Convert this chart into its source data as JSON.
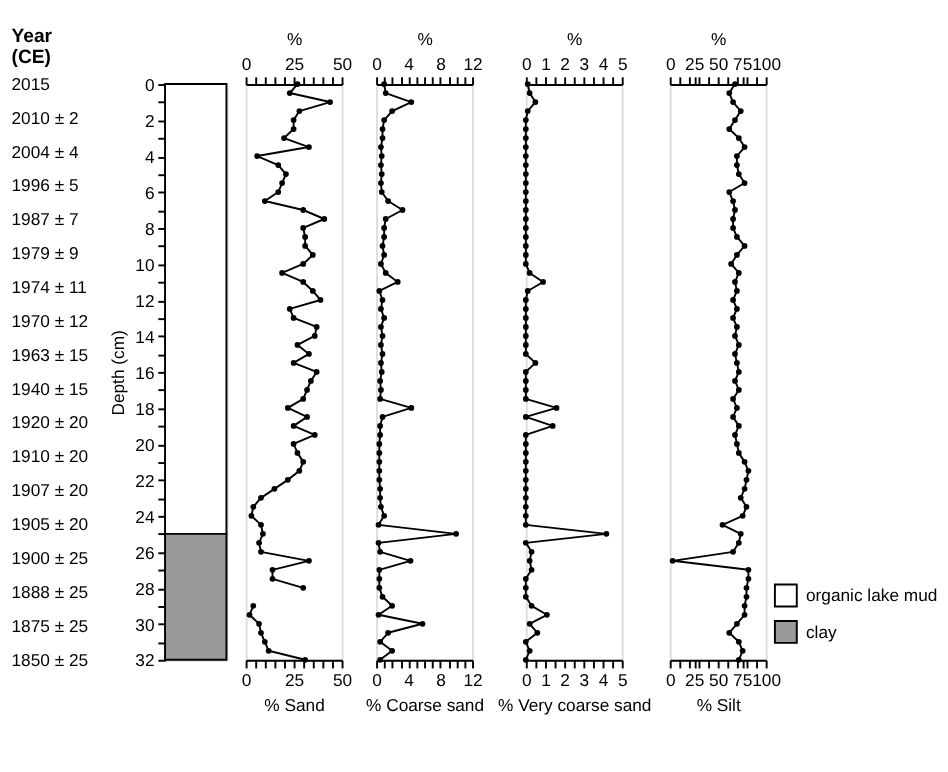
{
  "chart_data": [
    {
      "type": "bar",
      "stacked": true,
      "ylabel": "Depth (cm)",
      "categories": [
        null
      ],
      "series": [
        {
          "name": "organic lake mud",
          "color": "#ffffff",
          "values": [
            25
          ]
        },
        {
          "name": "clay",
          "color": "#999999",
          "values": [
            7
          ]
        }
      ],
      "ylim": [
        32,
        0
      ],
      "yticks": [
        0,
        {
          "value": 1,
          "label": null
        },
        2,
        {
          "value": 3,
          "label": null
        },
        4,
        {
          "value": 5,
          "label": null
        },
        6,
        {
          "value": 7,
          "label": null
        },
        8,
        {
          "value": 9,
          "label": null
        },
        10,
        {
          "value": 11,
          "label": null
        },
        12,
        {
          "value": 13,
          "label": null
        },
        14,
        {
          "value": 15,
          "label": null
        },
        16,
        {
          "value": 17,
          "label": null
        },
        18,
        {
          "value": 19,
          "label": null
        },
        20,
        {
          "value": 21,
          "label": null
        },
        22,
        {
          "value": 23,
          "label": null
        },
        24,
        {
          "value": 25,
          "label": null
        },
        26,
        {
          "value": 27,
          "label": null
        },
        28,
        {
          "value": 29,
          "label": null
        },
        30,
        {
          "value": 31,
          "label": null
        },
        32
      ],
      "tick_labels": "y",
      "legend": "bottom right",
      "annotations": [
        "Year (CE)",
        "2015",
        "2010 ± 2",
        "2004 ± 4",
        "1996 ± 5",
        "1987 ± 7",
        "1979 ± 9",
        "1974 ± 11",
        "1970 ± 12",
        "1963 ± 15",
        "1940 ± 15",
        "1920 ± 20",
        "1910 ± 20",
        "1907 ± 20",
        "1905 ± 20",
        "1900 ± 25",
        "1888 ± 25",
        "1875 ± 25",
        "1850 ± 25"
      ]
    },
    {
      "type": "line",
      "orientation": "horizontal",
      "marker": "circle",
      "xlabel": "% Sand",
      "x2label": "%",
      "tick_labels": "x",
      "ylim": [
        32,
        0
      ],
      "x": [
        0,
        0.5,
        1,
        1.5,
        2,
        2.5,
        3,
        3.5,
        4,
        4.5,
        5,
        5.5,
        6,
        6.5,
        7,
        7.5,
        8,
        8.5,
        9,
        9.5,
        10,
        10.5,
        11,
        11.5,
        12,
        12.5,
        13,
        13.5,
        14,
        14.5,
        15,
        15.5,
        16,
        16.5,
        17,
        17.5,
        18,
        18.5,
        19,
        19.5,
        20,
        20.5,
        21,
        21.5,
        22,
        22.5,
        23,
        23.5,
        24,
        24.5,
        25,
        25.5,
        26,
        26.5,
        27,
        27.5,
        28,
        28.5,
        29,
        29.5,
        30,
        30.5,
        31,
        31.5,
        32
      ],
      "series": [
        {
          "color": "#000000",
          "values": [
            27,
            23,
            44,
            28,
            25,
            25,
            20,
            33,
            6,
            17,
            21,
            19,
            17,
            10,
            30,
            41,
            30,
            31,
            31,
            35,
            30,
            19,
            30,
            35,
            39,
            23,
            25,
            37,
            36,
            27,
            33,
            25,
            37,
            34,
            32,
            30,
            22,
            32,
            25,
            36,
            25,
            27,
            30,
            28,
            22,
            15,
            8,
            4,
            3,
            8,
            9,
            7,
            8,
            33,
            14,
            14,
            30,
            null,
            4,
            2,
            7,
            8,
            10,
            12,
            31
          ]
        }
      ],
      "xlim": [
        0,
        50
      ],
      "xticks": [
        0,
        {
          "value": 5,
          "label": null
        },
        {
          "value": 10,
          "label": null
        },
        {
          "value": 15,
          "label": null
        },
        {
          "value": 20,
          "label": null
        },
        25,
        {
          "value": 30,
          "label": null
        },
        {
          "value": 35,
          "label": null
        },
        {
          "value": 40,
          "label": null
        },
        {
          "value": 45,
          "label": null
        },
        50
      ],
      "x2lim": [
        0,
        50
      ],
      "x2ticks": [
        0,
        {
          "value": 5,
          "label": null
        },
        {
          "value": 10,
          "label": null
        },
        {
          "value": 15,
          "label": null
        },
        {
          "value": 20,
          "label": null
        },
        25,
        {
          "value": 30,
          "label": null
        },
        {
          "value": 35,
          "label": null
        },
        {
          "value": 40,
          "label": null
        },
        {
          "value": 45,
          "label": null
        },
        50
      ]
    },
    {
      "type": "line",
      "orientation": "horizontal",
      "marker": "circle",
      "xlabel": "% Coarse sand",
      "x2label": "%",
      "tick_labels": "x",
      "ylim": [
        32,
        0
      ],
      "x": [
        0,
        0.5,
        1,
        1.5,
        2,
        2.5,
        3,
        3.5,
        4,
        4.5,
        5,
        5.5,
        6,
        6.5,
        7,
        7.5,
        8,
        8.5,
        9,
        9.5,
        10,
        10.5,
        11,
        11.5,
        12,
        12.5,
        13,
        13.5,
        14,
        14.5,
        15,
        15.5,
        16,
        16.5,
        17,
        17.5,
        18,
        18.5,
        19,
        19.5,
        20,
        20.5,
        21,
        21.5,
        22,
        22.5,
        23,
        23.5,
        24,
        24.5,
        25,
        25.5,
        26,
        26.5,
        27,
        27.5,
        28,
        28.5,
        29,
        29.5,
        30,
        30.5,
        31,
        31.5,
        32
      ],
      "series": [
        {
          "color": "#000000",
          "values": [
            1.0,
            1.2,
            4.4,
            2.0,
            1.0,
            0.8,
            0.8,
            0.6,
            0.7,
            0.6,
            0.7,
            0.6,
            0.7,
            1.5,
            3.3,
            1.2,
            1.0,
            1.0,
            0.8,
            1.0,
            0.6,
            1.2,
            2.7,
            0.4,
            0.8,
            0.6,
            1.0,
            0.6,
            0.8,
            0.6,
            0.8,
            0.6,
            0.7,
            0.5,
            0.6,
            0.5,
            4.4,
            0.8,
            0.5,
            0.5,
            0.4,
            0.4,
            0.4,
            0.4,
            0.4,
            0.5,
            0.5,
            0.6,
            1.0,
            0.3,
            10,
            0.3,
            0.5,
            4.3,
            0.4,
            0.4,
            0.4,
            0.8,
            2.0,
            0.3,
            5.8,
            1.5,
            0.5,
            2.0,
            0.5
          ]
        }
      ],
      "xlim": [
        0,
        12
      ],
      "xticks": [
        0,
        {
          "value": 1,
          "label": null
        },
        {
          "value": 2,
          "label": null
        },
        {
          "value": 3,
          "label": null
        },
        4,
        {
          "value": 5,
          "label": null
        },
        {
          "value": 6,
          "label": null
        },
        {
          "value": 7,
          "label": null
        },
        8,
        {
          "value": 9,
          "label": null
        },
        {
          "value": 10,
          "label": null
        },
        {
          "value": 11,
          "label": null
        },
        12
      ],
      "x2lim": [
        0,
        12
      ],
      "x2ticks": [
        0,
        {
          "value": 1,
          "label": null
        },
        {
          "value": 2,
          "label": null
        },
        {
          "value": 3,
          "label": null
        },
        4,
        {
          "value": 5,
          "label": null
        },
        {
          "value": 6,
          "label": null
        },
        {
          "value": 7,
          "label": null
        },
        8,
        {
          "value": 9,
          "label": null
        },
        {
          "value": 10,
          "label": null
        },
        {
          "value": 11,
          "label": null
        },
        12
      ]
    },
    {
      "type": "line",
      "orientation": "horizontal",
      "marker": "circle",
      "xlabel": "% Very coarse sand",
      "x2label": "%",
      "tick_labels": "x",
      "ylim": [
        32,
        0
      ],
      "x": [
        0,
        0.5,
        1,
        1.5,
        2,
        2.5,
        3,
        3.5,
        4,
        4.5,
        5,
        5.5,
        6,
        6.5,
        7,
        7.5,
        8,
        8.5,
        9,
        9.5,
        10,
        10.5,
        11,
        11.5,
        12,
        12.5,
        13,
        13.5,
        14,
        14.5,
        15,
        15.5,
        16,
        16.5,
        17,
        17.5,
        18,
        18.5,
        19,
        19.5,
        20,
        20.5,
        21,
        21.5,
        22,
        22.5,
        23,
        23.5,
        24,
        24.5,
        25,
        25.5,
        26,
        26.5,
        27,
        27.5,
        28,
        28.5,
        29,
        29.5,
        30,
        30.5,
        31,
        31.5,
        32
      ],
      "series": [
        {
          "color": "#000000",
          "values": [
            0.1,
            0.2,
            0.5,
            0.1,
            0,
            0,
            0,
            0,
            0,
            0,
            0,
            0,
            0,
            0,
            0,
            0,
            0,
            0,
            0,
            0,
            0,
            0.2,
            0.9,
            0.1,
            0,
            0,
            0,
            0,
            0,
            0,
            0,
            0.5,
            0,
            0,
            0,
            0,
            1.6,
            0,
            1.4,
            0,
            0,
            0,
            0,
            0,
            0,
            0,
            0,
            0,
            0,
            0,
            4.2,
            0,
            0.3,
            0.2,
            0.3,
            0,
            0,
            0,
            0.3,
            1.1,
            0.2,
            0.6,
            0,
            0.2,
            0
          ]
        }
      ],
      "xlim": [
        0,
        5
      ],
      "xticks": [
        0,
        {
          "value": 0.5,
          "label": null
        },
        1,
        {
          "value": 1.5,
          "label": null
        },
        2,
        {
          "value": 2.5,
          "label": null
        },
        3,
        {
          "value": 3.5,
          "label": null
        },
        4,
        {
          "value": 4.5,
          "label": null
        },
        5
      ],
      "x2lim": [
        0,
        5
      ],
      "x2ticks": [
        0,
        {
          "value": 0.5,
          "label": null
        },
        1,
        {
          "value": 1.5,
          "label": null
        },
        2,
        {
          "value": 2.5,
          "label": null
        },
        3,
        {
          "value": 3.5,
          "label": null
        },
        4,
        {
          "value": 4.5,
          "label": null
        },
        5
      ]
    },
    {
      "type": "line",
      "orientation": "horizontal",
      "marker": "circle",
      "xlabel": "% Silt",
      "x2label": "%",
      "tick_labels": "x",
      "ylim": [
        32,
        0
      ],
      "x": [
        0,
        0.5,
        1,
        1.5,
        2,
        2.5,
        3,
        3.5,
        4,
        4.5,
        5,
        5.5,
        6,
        6.5,
        7,
        7.5,
        8,
        8.5,
        9,
        9.5,
        10,
        10.5,
        11,
        11.5,
        12,
        12.5,
        13,
        13.5,
        14,
        14.5,
        15,
        15.5,
        16,
        16.5,
        17,
        17.5,
        18,
        18.5,
        19,
        19.5,
        20,
        20.5,
        21,
        21.5,
        22,
        22.5,
        23,
        23.5,
        24,
        24.5,
        25,
        25.5,
        26,
        26.5,
        27,
        27.5,
        28,
        28.5,
        29,
        29.5,
        30,
        30.5,
        31,
        31.5,
        32
      ],
      "series": [
        {
          "color": "#000000",
          "values": [
            68,
            62,
            66,
            74,
            68,
            62,
            72,
            78,
            70,
            70,
            72,
            78,
            62,
            66,
            68,
            66,
            66,
            70,
            78,
            70,
            64,
            72,
            68,
            70,
            66,
            70,
            66,
            70,
            68,
            72,
            68,
            70,
            72,
            68,
            72,
            66,
            70,
            66,
            72,
            68,
            70,
            72,
            78,
            82,
            80,
            78,
            74,
            80,
            76,
            55,
            74,
            72,
            66,
            3,
            82,
            82,
            80,
            80,
            78,
            78,
            70,
            62,
            72,
            76,
            72
          ]
        }
      ],
      "xlim": [
        0,
        100
      ],
      "xticks": [
        0,
        {
          "value": 10,
          "label": null
        },
        {
          "value": 20,
          "label": null
        },
        25,
        {
          "value": 30,
          "label": null
        },
        {
          "value": 40,
          "label": null
        },
        50,
        {
          "value": 60,
          "label": null
        },
        {
          "value": 70,
          "label": null
        },
        75,
        {
          "value": 80,
          "label": null
        },
        {
          "value": 90,
          "label": null
        },
        100
      ],
      "x2lim": [
        0,
        100
      ],
      "x2ticks": [
        0,
        {
          "value": 10,
          "label": null
        },
        {
          "value": 20,
          "label": null
        },
        25,
        {
          "value": 30,
          "label": null
        },
        {
          "value": 40,
          "label": null
        },
        50,
        {
          "value": 60,
          "label": null
        },
        {
          "value": 70,
          "label": null
        },
        75,
        {
          "value": 80,
          "label": null
        },
        {
          "value": 90,
          "label": null
        },
        100
      ]
    }
  ]
}
